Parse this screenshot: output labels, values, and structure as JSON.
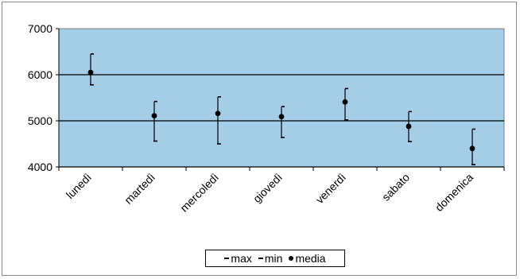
{
  "chart_data": {
    "type": "scatter",
    "categories": [
      "lunedì",
      "martedì",
      "mercoledì",
      "giovedì",
      "venerdì",
      "sabato",
      "domenica"
    ],
    "series": [
      {
        "name": "max",
        "values": [
          6450,
          5420,
          5520,
          5310,
          5700,
          5200,
          4820
        ]
      },
      {
        "name": "min",
        "values": [
          5780,
          4560,
          4500,
          4640,
          5020,
          4550,
          4050
        ]
      },
      {
        "name": "media",
        "values": [
          6050,
          5110,
          5160,
          5090,
          5410,
          4880,
          4400
        ]
      }
    ],
    "ylim": [
      4000,
      7000
    ],
    "y_ticks": [
      "4000",
      "5000",
      "6000",
      "7000"
    ],
    "grid": "horizontal major lines",
    "legend_position": "bottom",
    "colors": {
      "plot_background": "#a6cde8",
      "marks": "#000000",
      "border": "#808080"
    }
  }
}
